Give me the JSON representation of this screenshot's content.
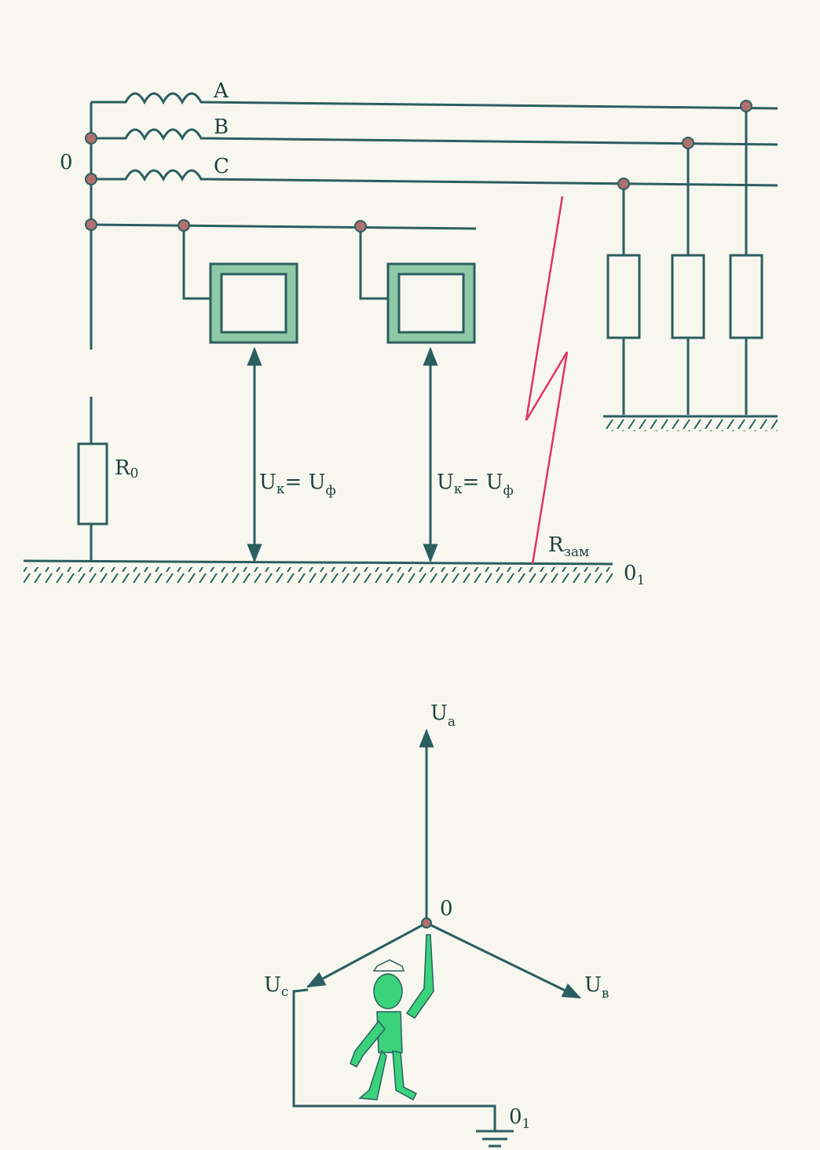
{
  "colors": {
    "wire": "#2b5e60",
    "fault": "#e0336b",
    "person": "#3ad27a",
    "enclosure_fill": "#8fc9a6",
    "background": "#f7f7ef"
  },
  "circuit": {
    "neutral_label": "0",
    "phases": [
      "A",
      "B",
      "C"
    ],
    "r0_main": "R",
    "r0_sub": "0",
    "u_touch_1_main": "U",
    "u_touch_1_sub": "к",
    "u_touch_1_eq": "= U",
    "u_touch_1_sub2": "ф",
    "u_touch_2_main": "U",
    "u_touch_2_sub": "к",
    "u_touch_2_eq": "= U",
    "u_touch_2_sub2": "ф",
    "rzam_main": "R",
    "rzam_sub": "зам",
    "ground_label_main": "0",
    "ground_label_sub": "1"
  },
  "vector": {
    "ua_main": "U",
    "ua_sub": "a",
    "ub_main": "U",
    "ub_sub": "в",
    "uc_main": "U",
    "uc_sub": "c",
    "center_label": "0",
    "ground_main": "0",
    "ground_sub": "1"
  }
}
